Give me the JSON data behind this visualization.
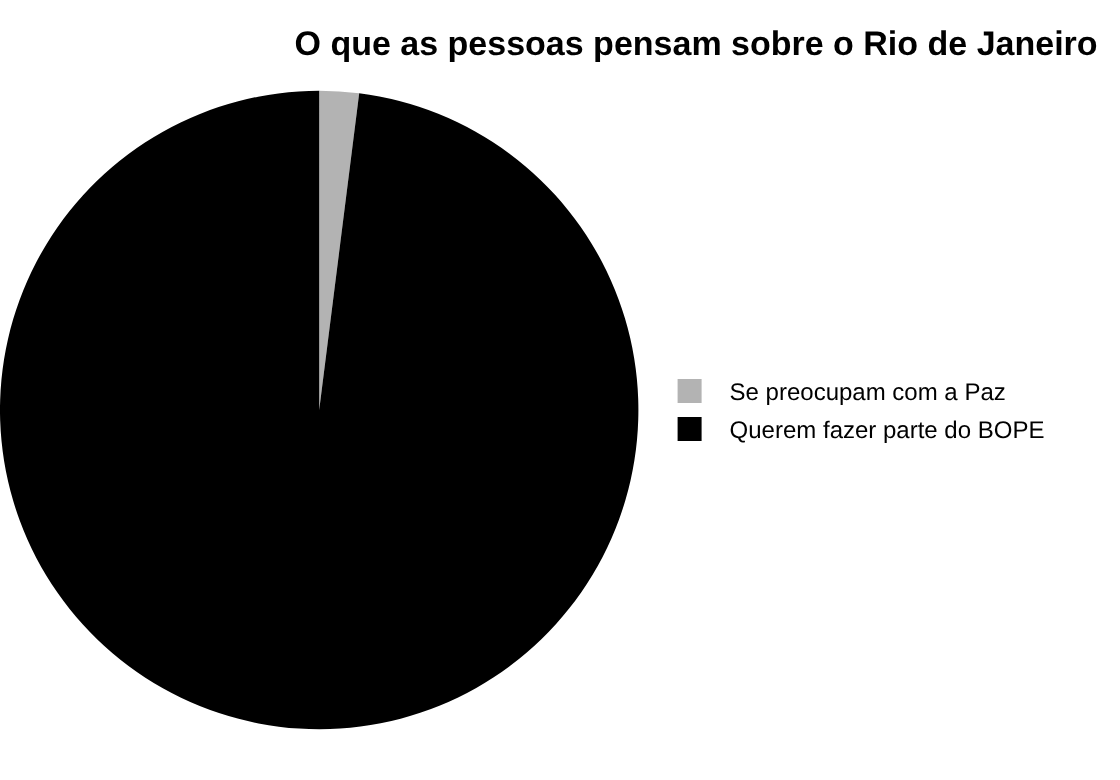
{
  "chart_data": {
    "type": "pie",
    "title": "O que as pessoas pensam sobre o Rio de Janeiro",
    "categories": [
      "Se preocupam com a Paz",
      "Querem fazer parte do BOPE"
    ],
    "values": [
      2,
      98
    ],
    "colors": [
      "#b3b3b3",
      "#000000"
    ],
    "legend": "right"
  }
}
